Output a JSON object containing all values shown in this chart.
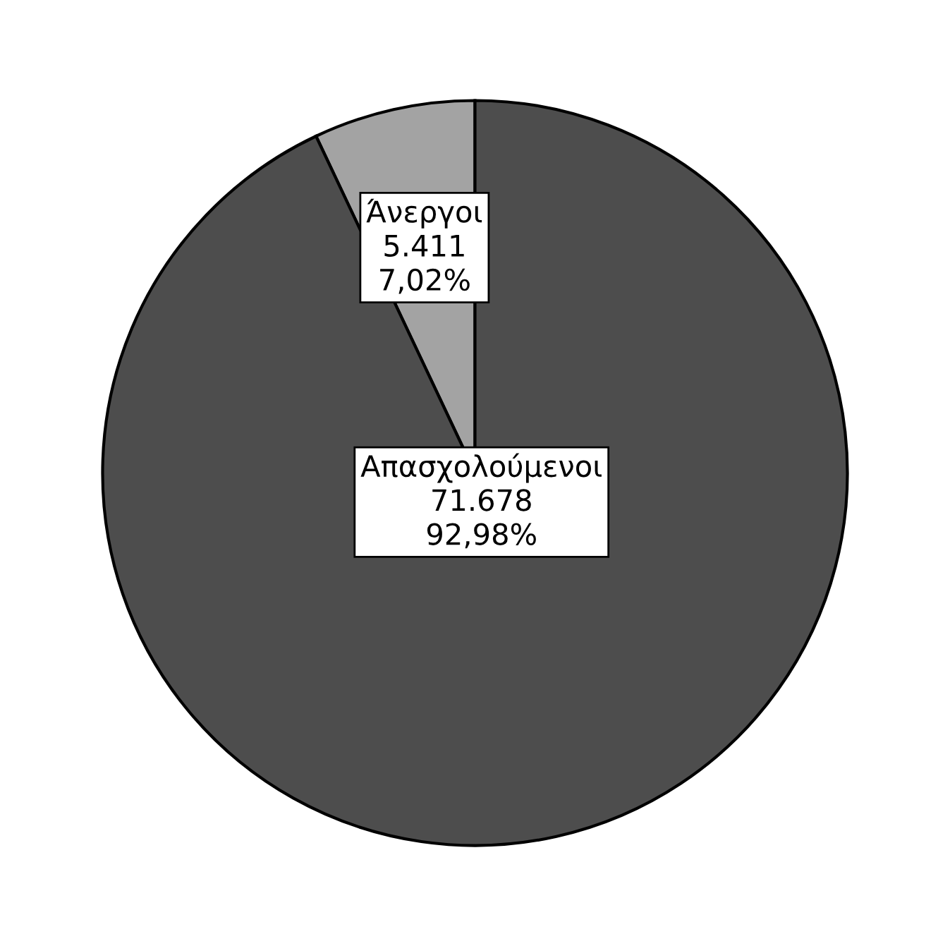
{
  "chart_data": {
    "type": "pie",
    "categories": [
      "Άνεργοι",
      "Απασχολούμενοι"
    ],
    "values": [
      5411,
      71678
    ],
    "value_labels": [
      "5.411\n7,02%",
      "71.678\n92,98%"
    ],
    "colors": [
      "#a3a3a3",
      "#4d4d4d"
    ],
    "legend": false
  }
}
